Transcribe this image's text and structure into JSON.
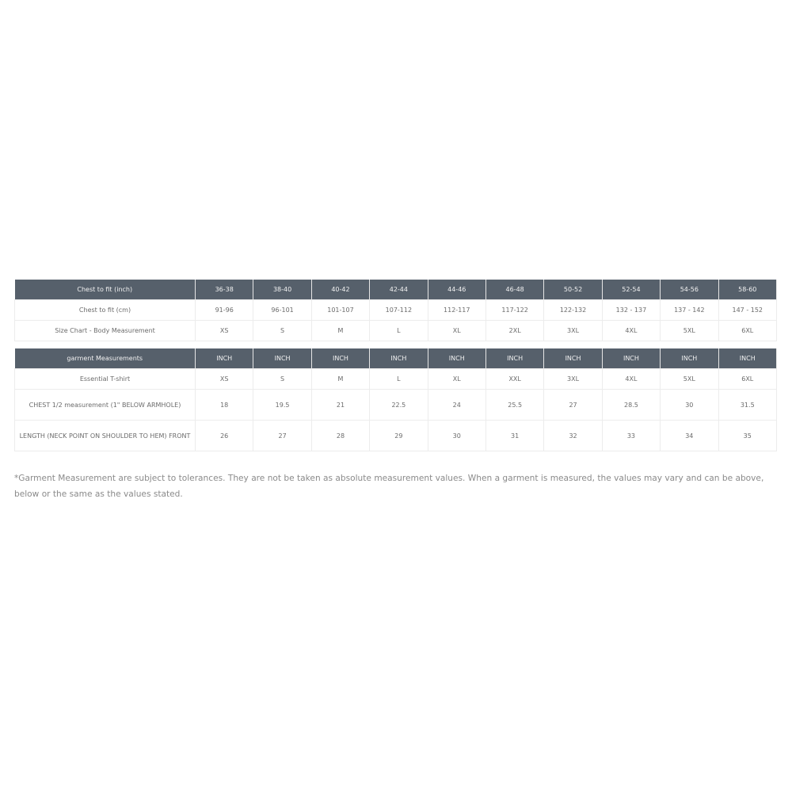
{
  "body_table": {
    "header": [
      "Chest to fit (inch)",
      "36-38",
      "38-40",
      "40-42",
      "42-44",
      "44-46",
      "46-48",
      "50-52",
      "52-54",
      "54-56",
      "58-60"
    ],
    "rows": [
      [
        "Chest to fit (cm)",
        "91-96",
        "96-101",
        "101-107",
        "107-112",
        "112-117",
        "117-122",
        "122-132",
        "132 - 137",
        "137 - 142",
        "147 - 152"
      ],
      [
        "Size Chart - Body Measurement",
        "XS",
        "S",
        "M",
        "L",
        "XL",
        "2XL",
        "3XL",
        "4XL",
        "5XL",
        "6XL"
      ]
    ]
  },
  "garment_table": {
    "header": [
      "garment Measurements",
      "INCH",
      "INCH",
      "INCH",
      "INCH",
      "INCH",
      "INCH",
      "INCH",
      "INCH",
      "INCH",
      "INCH"
    ],
    "rows": [
      [
        "Essential T-shirt",
        "XS",
        "S",
        "M",
        "L",
        "XL",
        "XXL",
        "3XL",
        "4XL",
        "5XL",
        "6XL"
      ],
      [
        "CHEST 1/2 measurement (1\" BELOW ARMHOLE)",
        "18",
        "19.5",
        "21",
        "22.5",
        "24",
        "25.5",
        "27",
        "28.5",
        "30",
        "31.5"
      ],
      [
        "LENGTH (NECK POINT ON SHOULDER TO HEM) FRONT",
        "26",
        "27",
        "28",
        "29",
        "30",
        "31",
        "32",
        "33",
        "34",
        "35"
      ]
    ]
  },
  "note": "*Garment Measurement are subject to tolerances. They are not be taken as absolute measurement values. When a garment is measured, the values may vary and can be above, below or the same as the values stated."
}
